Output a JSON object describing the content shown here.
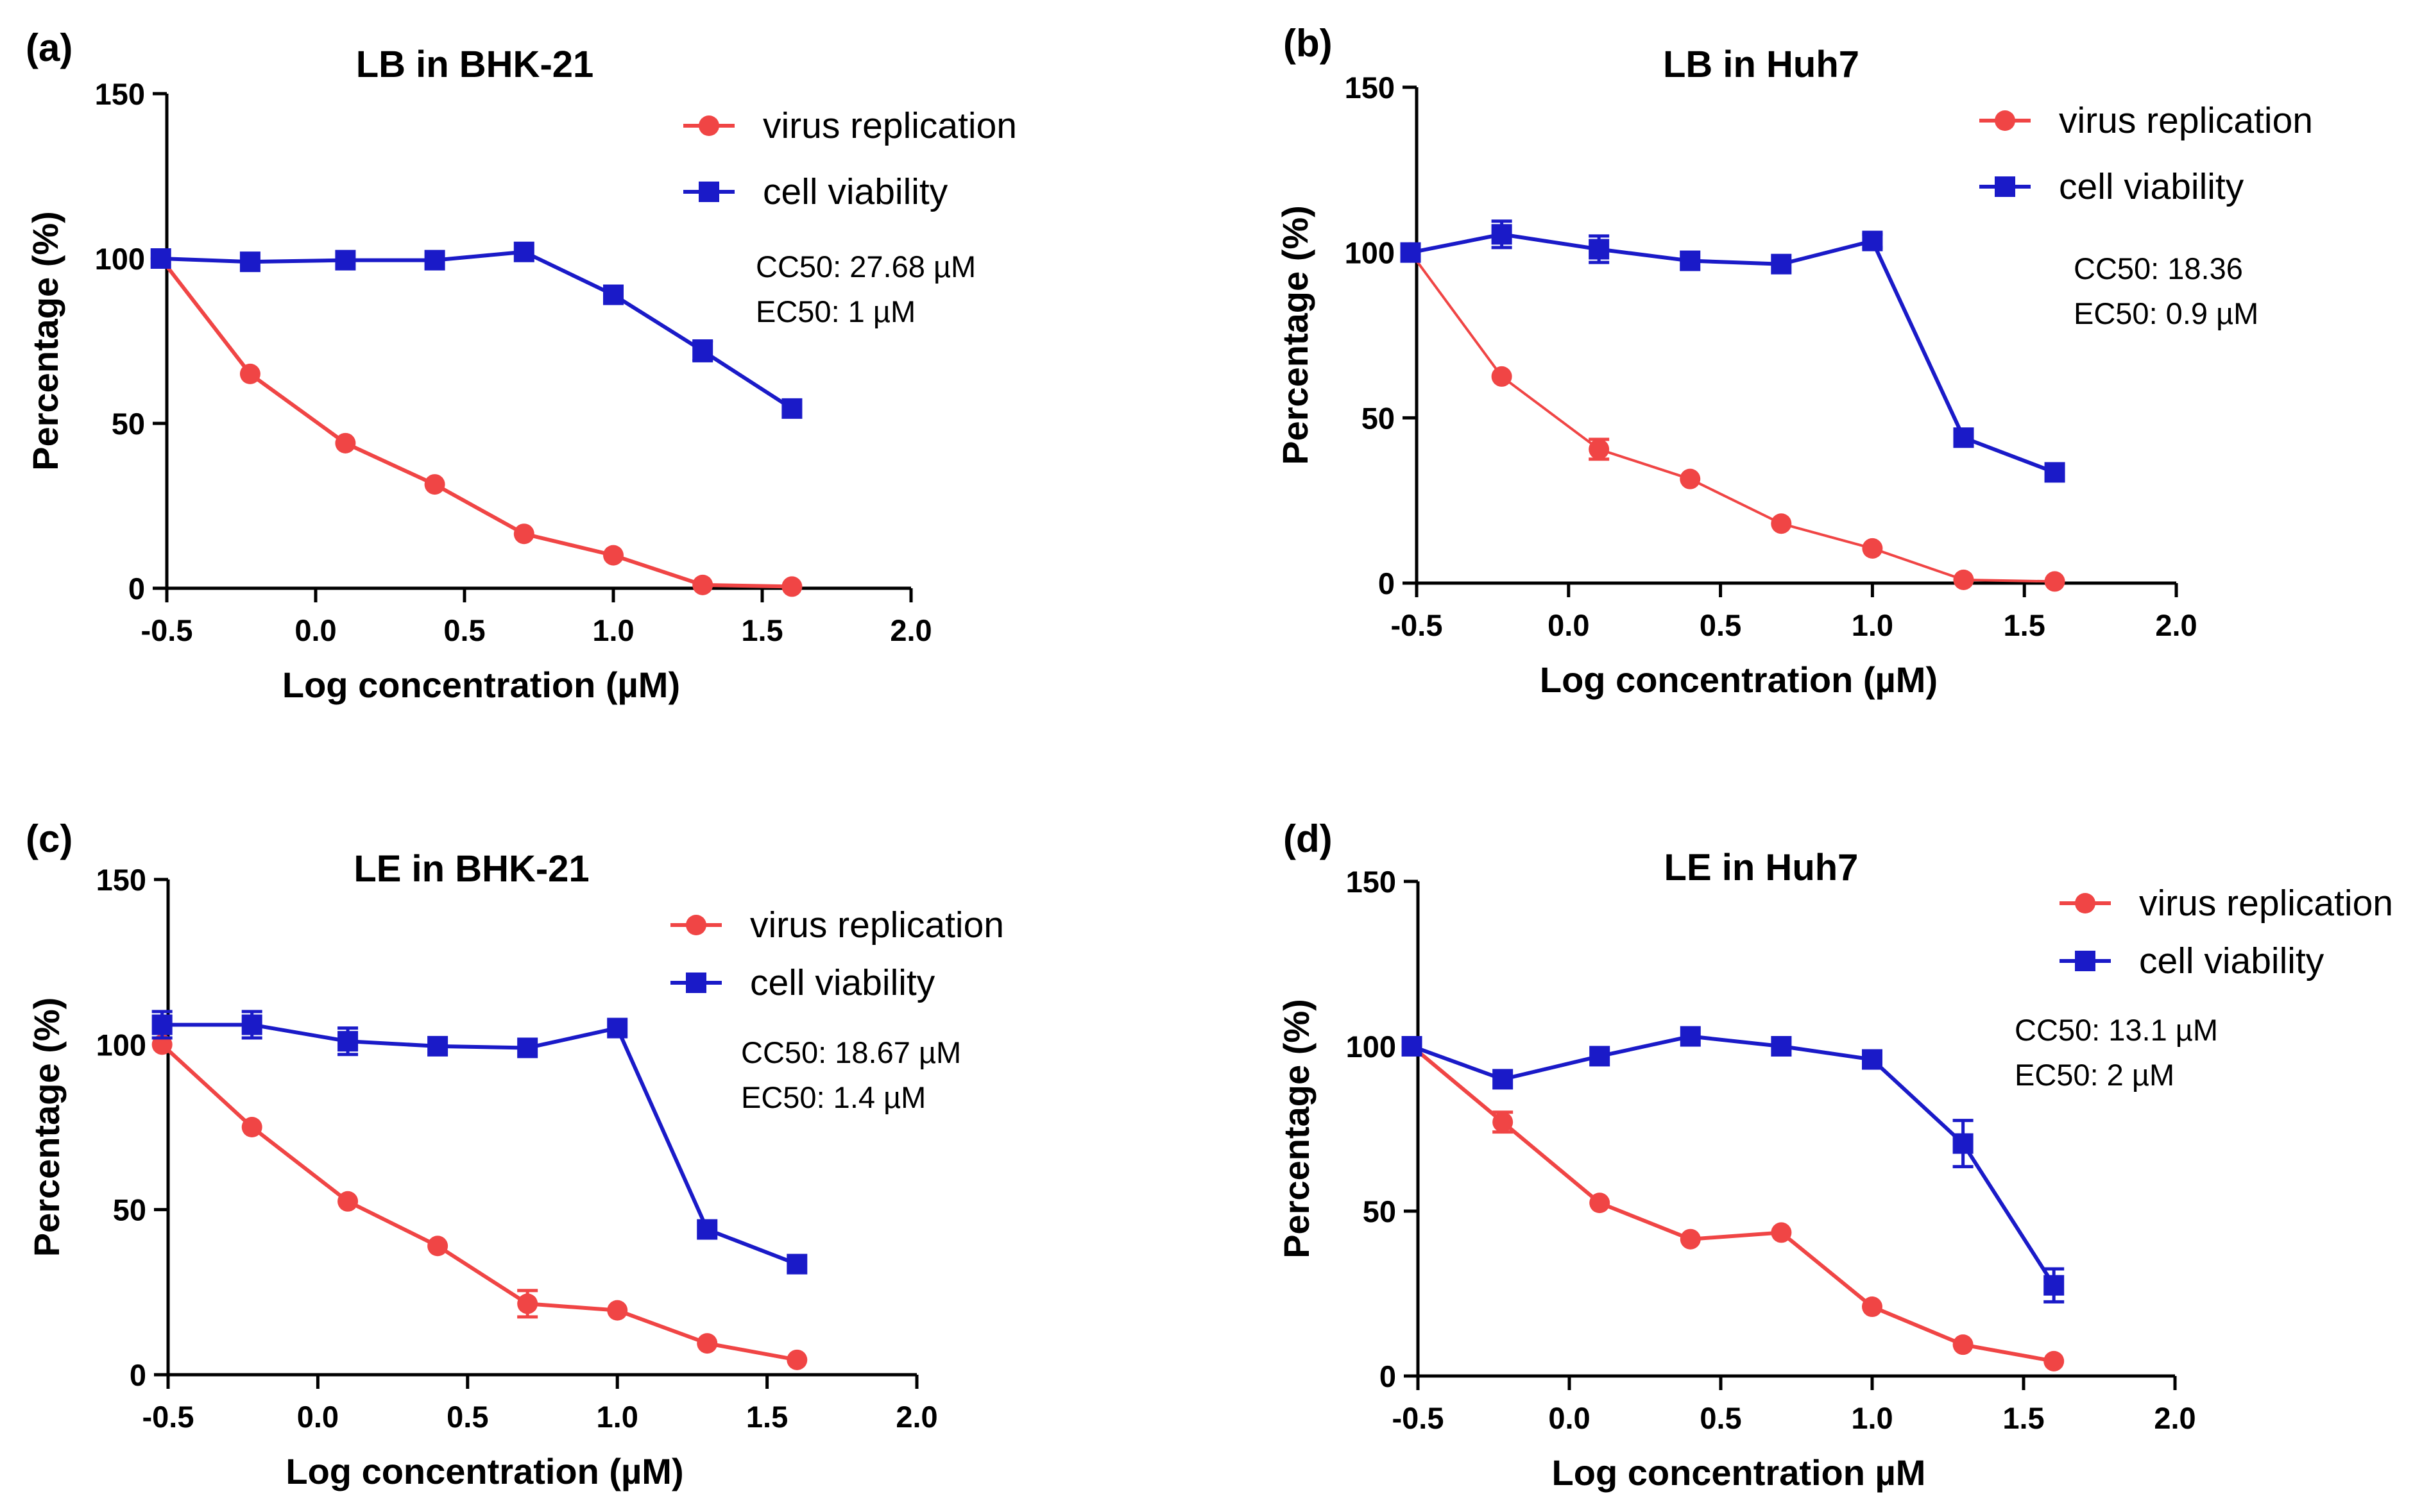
{
  "colors": {
    "virus_replication": "#f04545",
    "cell_viability": "#1a1ac8",
    "axis": "#000000"
  },
  "chart_data": [
    {
      "type": "line",
      "panel_label": "(a)",
      "title": "LB in BHK-21",
      "xlabel": "Log concentration (µM)",
      "ylabel": "Percentage (%)",
      "xlim": [
        -0.5,
        2.0
      ],
      "ylim": [
        0,
        150
      ],
      "xticks": [
        "-0.5",
        "0.0",
        "0.5",
        "1.0",
        "1.5",
        "2.0"
      ],
      "yticks": [
        "0",
        "50",
        "100",
        "150"
      ],
      "legend_position": "top-right",
      "annotations": [
        "CC50: 27.68 µM",
        "EC50: 1  µM"
      ],
      "series": [
        {
          "name": "virus replication",
          "marker": "circle",
          "x": [
            -0.52,
            -0.22,
            0.1,
            0.4,
            0.7,
            1.0,
            1.3,
            1.6
          ],
          "y": [
            100,
            65,
            44,
            31.5,
            16.5,
            10,
            1,
            0.5
          ],
          "err": [
            0,
            0,
            0,
            0,
            0,
            0,
            0,
            0
          ]
        },
        {
          "name": "cell viability",
          "marker": "square",
          "x": [
            -0.52,
            -0.22,
            0.1,
            0.4,
            0.7,
            1.0,
            1.3,
            1.6
          ],
          "y": [
            100,
            99,
            99.5,
            99.5,
            102,
            89,
            72,
            54.5
          ],
          "err": [
            0,
            0,
            0,
            0,
            0,
            0,
            3,
            0
          ]
        }
      ]
    },
    {
      "type": "line",
      "panel_label": "(b)",
      "title": "LB in Huh7",
      "xlabel": "Log concentration (µM)",
      "ylabel": "Percentage (%)",
      "xlim": [
        -0.5,
        2.0
      ],
      "ylim": [
        0,
        150
      ],
      "xticks": [
        "-0.5",
        "0.0",
        "0.5",
        "1.0",
        "1.5",
        "2.0"
      ],
      "yticks": [
        "0",
        "50",
        "100",
        "150"
      ],
      "legend_position": "top-right",
      "annotations": [
        "CC50: 18.36",
        "EC50: 0.9  µM"
      ],
      "series": [
        {
          "name": "virus replication",
          "marker": "circle",
          "x": [
            -0.52,
            -0.22,
            0.1,
            0.4,
            0.7,
            1.0,
            1.3,
            1.6
          ],
          "y": [
            100,
            62.5,
            40.5,
            31.5,
            18,
            10.5,
            1,
            0.5
          ],
          "err": [
            0,
            0,
            3,
            0,
            0,
            0,
            0,
            0
          ]
        },
        {
          "name": "cell viability",
          "marker": "square",
          "x": [
            -0.52,
            -0.22,
            0.1,
            0.4,
            0.7,
            1.0,
            1.3,
            1.6
          ],
          "y": [
            100,
            105.5,
            101,
            97.5,
            96.5,
            103.5,
            44,
            33.5
          ],
          "err": [
            0,
            4,
            4,
            0,
            0,
            2,
            0,
            0
          ]
        }
      ]
    },
    {
      "type": "line",
      "panel_label": "(c)",
      "title": "LE in BHK-21",
      "xlabel": "Log concentration (µM)",
      "ylabel": "Percentage (%)",
      "xlim": [
        -0.5,
        2.0
      ],
      "ylim": [
        0,
        150
      ],
      "xticks": [
        "-0.5",
        "0.0",
        "0.5",
        "1.0",
        "1.5",
        "2.0"
      ],
      "yticks": [
        "0",
        "50",
        "100",
        "150"
      ],
      "legend_position": "top-right",
      "annotations": [
        "CC50: 18.67 µM",
        "EC50:  1.4  µM"
      ],
      "series": [
        {
          "name": "virus replication",
          "marker": "circle",
          "x": [
            -0.52,
            -0.22,
            0.1,
            0.4,
            0.7,
            1.0,
            1.3,
            1.6
          ],
          "y": [
            100,
            75,
            52.5,
            39,
            21.5,
            19.5,
            9.5,
            4.5
          ],
          "err": [
            0,
            0,
            0,
            0,
            4,
            0,
            0,
            0
          ]
        },
        {
          "name": "cell viability",
          "marker": "square",
          "x": [
            -0.52,
            -0.22,
            0.1,
            0.4,
            0.7,
            1.0,
            1.3,
            1.6
          ],
          "y": [
            106,
            106,
            101,
            99.5,
            99,
            105,
            44,
            33.5
          ],
          "err": [
            4,
            4,
            4,
            0,
            0,
            0,
            0,
            0
          ]
        }
      ]
    },
    {
      "type": "line",
      "panel_label": "(d)",
      "title": "LE in Huh7",
      "xlabel": "Log concentration µM",
      "ylabel": "Percentage (%)",
      "xlim": [
        -0.5,
        2.0
      ],
      "ylim": [
        0,
        150
      ],
      "xticks": [
        "-0.5",
        "0.0",
        "0.5",
        "1.0",
        "1.5",
        "2.0"
      ],
      "yticks": [
        "0",
        "50",
        "100",
        "150"
      ],
      "legend_position": "top-right",
      "annotations": [
        "CC50: 13.1 µM",
        "EC50: 2  µM"
      ],
      "series": [
        {
          "name": "virus replication",
          "marker": "circle",
          "x": [
            -0.52,
            -0.22,
            0.1,
            0.4,
            0.7,
            1.0,
            1.3,
            1.6
          ],
          "y": [
            100,
            77,
            52.5,
            41.5,
            43.5,
            21,
            9.5,
            4.5
          ],
          "err": [
            0,
            3,
            0,
            0,
            0,
            0,
            0,
            0
          ]
        },
        {
          "name": "cell viability",
          "marker": "square",
          "x": [
            -0.52,
            -0.22,
            0.1,
            0.4,
            0.7,
            1.0,
            1.3,
            1.6
          ],
          "y": [
            100,
            90,
            97,
            103,
            100,
            96,
            70.5,
            27.5
          ],
          "err": [
            0,
            0,
            0,
            0,
            0,
            2,
            7,
            5
          ]
        }
      ]
    }
  ]
}
